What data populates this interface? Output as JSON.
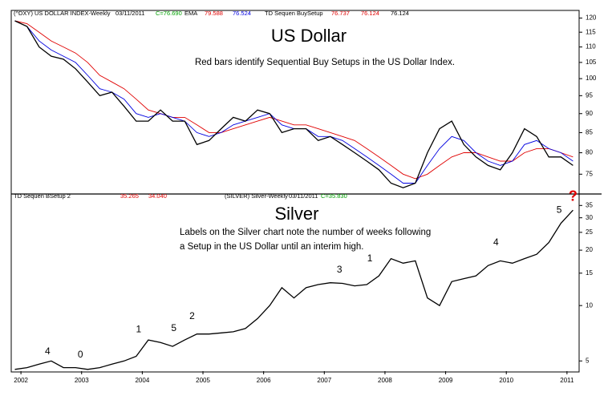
{
  "chart_data": [
    {
      "type": "line",
      "title": "US Dollar",
      "note": [
        "Red bars identify Sequential Buy Setups in the US Dollar Index."
      ],
      "header": [
        {
          "text": "(^DXY) US DOLLAR INDEX-Weekly",
          "color": "#000000"
        },
        {
          "text": "03/11/2011",
          "color": "#000000"
        },
        {
          "text": "C=76.690",
          "color": "#00a000"
        },
        {
          "text": "EMA",
          "color": "#000000"
        },
        {
          "text": "79.588",
          "color": "#e00000"
        },
        {
          "text": "76.524",
          "color": "#0000e0"
        },
        {
          "text": "TD Sequen BuySetup",
          "color": "#000000"
        },
        {
          "text": "76.737",
          "color": "#e00000"
        },
        {
          "text": "76.124",
          "color": "#e00000"
        },
        {
          "text": "76.124",
          "color": "#000000"
        }
      ],
      "x": [
        2001.9,
        2002.1,
        2002.3,
        2002.5,
        2002.7,
        2002.9,
        2003.1,
        2003.3,
        2003.5,
        2003.7,
        2003.9,
        2004.1,
        2004.3,
        2004.5,
        2004.7,
        2004.9,
        2005.1,
        2005.3,
        2005.5,
        2005.7,
        2005.9,
        2006.1,
        2006.3,
        2006.5,
        2006.7,
        2006.9,
        2007.1,
        2007.3,
        2007.5,
        2007.7,
        2007.9,
        2008.1,
        2008.3,
        2008.5,
        2008.7,
        2008.9,
        2009.1,
        2009.3,
        2009.5,
        2009.7,
        2009.9,
        2010.1,
        2010.3,
        2010.5,
        2010.7,
        2010.9,
        2011.1
      ],
      "series": [
        {
          "name": "US Dollar Index",
          "color": "#000000",
          "values": [
            119,
            117,
            110,
            107,
            106,
            103,
            99,
            95,
            96,
            92,
            88,
            88,
            91,
            88,
            88,
            82,
            83,
            86,
            89,
            88,
            91,
            90,
            85,
            86,
            86,
            83,
            84,
            82,
            80,
            78,
            76,
            73,
            72,
            73,
            80,
            86,
            88,
            82,
            79,
            77,
            76,
            80,
            86,
            84,
            79,
            79,
            77
          ]
        },
        {
          "name": "EMA slow",
          "color": "#e00000",
          "values": [
            119,
            118,
            115,
            112,
            110,
            108,
            105,
            101,
            99,
            97,
            94,
            91,
            90,
            89,
            89,
            87,
            85,
            85,
            86,
            87,
            88,
            89,
            88,
            87,
            87,
            86,
            85,
            84,
            83,
            81,
            79,
            77,
            75,
            74,
            75,
            77,
            79,
            80,
            80,
            79,
            78,
            78,
            80,
            81,
            81,
            80,
            79
          ]
        },
        {
          "name": "EMA fast",
          "color": "#0000e0",
          "values": [
            119,
            117,
            112,
            109,
            107,
            105,
            101,
            97,
            96,
            94,
            90,
            89,
            90,
            89,
            88,
            85,
            84,
            85,
            87,
            88,
            89,
            90,
            87,
            86,
            86,
            84,
            84,
            83,
            81,
            79,
            77,
            75,
            73,
            73,
            77,
            81,
            84,
            83,
            80,
            78,
            77,
            78,
            82,
            83,
            81,
            80,
            78
          ]
        }
      ],
      "xlim": [
        2001.84,
        2011.2
      ],
      "ylim": [
        71,
        122.5
      ],
      "log_scale": true,
      "yticks": [
        75,
        80,
        85,
        90,
        95,
        100,
        105,
        110,
        115,
        120
      ]
    },
    {
      "type": "line",
      "title": "Silver",
      "note": [
        "Labels on the Silver chart note the number of weeks following",
        "a Setup in the US Dollar until an interim high."
      ],
      "header": [
        {
          "text": "TD Sequen BSetup 2",
          "color": "#000000"
        },
        {
          "text": "35.265",
          "color": "#e00000"
        },
        {
          "text": "34.040",
          "color": "#e00000"
        },
        {
          "text": "(SILVER) Silver-Weekly",
          "color": "#000000"
        },
        {
          "text": "03/11/2011",
          "color": "#000000"
        },
        {
          "text": "C=35.830",
          "color": "#00a000"
        }
      ],
      "x": [
        2001.9,
        2002.1,
        2002.3,
        2002.5,
        2002.7,
        2002.9,
        2003.1,
        2003.3,
        2003.5,
        2003.7,
        2003.9,
        2004.1,
        2004.3,
        2004.5,
        2004.7,
        2004.9,
        2005.1,
        2005.3,
        2005.5,
        2005.7,
        2005.9,
        2006.1,
        2006.3,
        2006.5,
        2006.7,
        2006.9,
        2007.1,
        2007.3,
        2007.5,
        2007.7,
        2007.9,
        2008.1,
        2008.3,
        2008.5,
        2008.7,
        2008.9,
        2009.1,
        2009.3,
        2009.5,
        2009.7,
        2009.9,
        2010.1,
        2010.3,
        2010.5,
        2010.7,
        2010.9,
        2011.1
      ],
      "series": [
        {
          "name": "Silver",
          "color": "#000000",
          "values": [
            4.5,
            4.6,
            4.8,
            5.0,
            4.6,
            4.6,
            4.5,
            4.6,
            4.8,
            5.0,
            5.3,
            6.5,
            6.3,
            6.0,
            6.5,
            7.0,
            7.0,
            7.1,
            7.2,
            7.5,
            8.5,
            10.0,
            12.5,
            11.0,
            12.5,
            13.0,
            13.3,
            13.2,
            12.8,
            13.0,
            14.5,
            18.0,
            17.0,
            17.5,
            11.0,
            10.0,
            13.5,
            14.0,
            14.5,
            16.5,
            17.5,
            17.0,
            18.0,
            19.0,
            22.0,
            28.0,
            33
          ]
        }
      ],
      "annotations": [
        {
          "text": "4",
          "x": 2002.44,
          "y": 5.6,
          "color": "#000000"
        },
        {
          "text": "0",
          "x": 2002.98,
          "y": 5.4,
          "color": "#000000"
        },
        {
          "text": "1",
          "x": 2003.94,
          "y": 7.4,
          "color": "#000000"
        },
        {
          "text": "5",
          "x": 2004.52,
          "y": 7.5,
          "color": "#000000"
        },
        {
          "text": "2",
          "x": 2004.82,
          "y": 8.7,
          "color": "#000000"
        },
        {
          "text": "3",
          "x": 2007.25,
          "y": 15.6,
          "color": "#000000"
        },
        {
          "text": "1",
          "x": 2007.75,
          "y": 18,
          "color": "#000000"
        },
        {
          "text": "4",
          "x": 2009.83,
          "y": 21.9,
          "color": "#000000"
        },
        {
          "text": "5",
          "x": 2010.87,
          "y": 33,
          "color": "#000000"
        },
        {
          "text": "?",
          "x": 2011.1,
          "y": 39,
          "color": "#e00000"
        }
      ],
      "xlim": [
        2001.84,
        2011.2
      ],
      "ylim": [
        4.4,
        40
      ],
      "log_scale": true,
      "yticks": [
        5,
        10,
        15,
        20,
        25,
        30,
        35
      ],
      "xticks": [
        2002,
        2003,
        2004,
        2005,
        2006,
        2007,
        2008,
        2009,
        2010,
        2011
      ]
    }
  ]
}
